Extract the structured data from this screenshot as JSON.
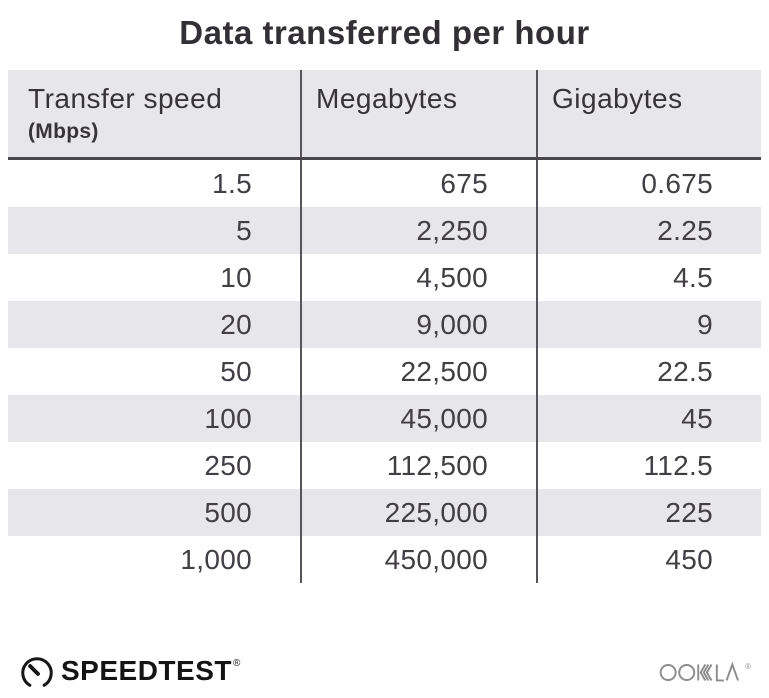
{
  "title": "Data transferred per hour",
  "table": {
    "columns": [
      {
        "key": "speed",
        "label": "Transfer speed",
        "sublabel": "(Mbps)"
      },
      {
        "key": "megabytes",
        "label": "Megabytes"
      },
      {
        "key": "gigabytes",
        "label": "Gigabytes"
      }
    ],
    "rows": [
      [
        "1.5",
        "675",
        "0.675"
      ],
      [
        "5",
        "2,250",
        "2.25"
      ],
      [
        "10",
        "4,500",
        "4.5"
      ],
      [
        "20",
        "9,000",
        "9"
      ],
      [
        "50",
        "22,500",
        "22.5"
      ],
      [
        "100",
        "45,000",
        "45"
      ],
      [
        "250",
        "112,500",
        "112.5"
      ],
      [
        "500",
        "225,000",
        "225"
      ],
      [
        "1,000",
        "450,000",
        "450"
      ]
    ]
  },
  "footer": {
    "brand": "SPEEDTEST",
    "brand_mark": "®",
    "company": "OOKLA",
    "company_mark": "®"
  },
  "colors": {
    "header_bg": "#e7e6ea",
    "row_alt": "#e7e6ea",
    "divider": "#56535a",
    "header_rule": "#49474d",
    "text": "#413e44",
    "title": "#323035",
    "brand": "#141414",
    "company": "#8d8d8d"
  },
  "chart_data": {
    "type": "table",
    "title": "Data transferred per hour",
    "columns": [
      "Transfer speed (Mbps)",
      "Megabytes",
      "Gigabytes"
    ],
    "rows": [
      [
        1.5,
        675,
        0.675
      ],
      [
        5,
        2250,
        2.25
      ],
      [
        10,
        4500,
        4.5
      ],
      [
        20,
        9000,
        9
      ],
      [
        50,
        22500,
        22.5
      ],
      [
        100,
        45000,
        45
      ],
      [
        250,
        112500,
        112.5
      ],
      [
        500,
        225000,
        225
      ],
      [
        1000,
        450000,
        450
      ]
    ],
    "layout": {
      "zebra_striping": true,
      "column_dividers": true,
      "header_rule": true
    }
  }
}
